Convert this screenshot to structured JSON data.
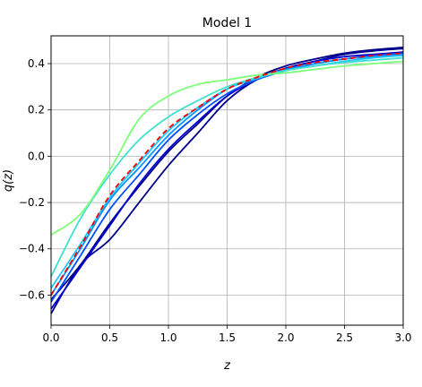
{
  "chart_data": {
    "type": "line",
    "title": "Model 1",
    "xlabel": "z",
    "ylabel": "q(z)",
    "xlim": [
      0,
      3
    ],
    "ylim": [
      -0.73,
      0.52
    ],
    "xticks": [
      0.0,
      0.5,
      1.0,
      1.5,
      2.0,
      2.5,
      3.0
    ],
    "xtick_labels": [
      "0.0",
      "0.5",
      "1.0",
      "1.5",
      "2.0",
      "2.5",
      "3.0"
    ],
    "yticks": [
      -0.6,
      -0.4,
      -0.2,
      0.0,
      0.2,
      0.4
    ],
    "ytick_labels": [
      "−0.6",
      "−0.4",
      "−0.2",
      "0.0",
      "0.2",
      "0.4"
    ],
    "grid": true,
    "x": [
      0.0,
      0.25,
      0.5,
      0.75,
      1.0,
      1.25,
      1.5,
      1.75,
      2.0,
      2.25,
      2.5,
      2.75,
      3.0
    ],
    "series": [
      {
        "color": "#00008b",
        "style": "solid",
        "values": [
          -0.68,
          -0.47,
          -0.36,
          -0.2,
          -0.04,
          0.1,
          0.24,
          0.33,
          0.38,
          0.41,
          0.44,
          0.455,
          0.465
        ]
      },
      {
        "color": "#00008b",
        "style": "solid",
        "values": [
          -0.62,
          -0.47,
          -0.29,
          -0.13,
          0.02,
          0.14,
          0.26,
          0.34,
          0.39,
          0.42,
          0.445,
          0.46,
          0.47
        ]
      },
      {
        "color": "#0000cd",
        "style": "solid",
        "values": [
          -0.66,
          -0.48,
          -0.3,
          -0.12,
          0.03,
          0.15,
          0.26,
          0.33,
          0.38,
          0.41,
          0.43,
          0.44,
          0.45
        ]
      },
      {
        "color": "#0050ff",
        "style": "solid",
        "values": [
          -0.63,
          -0.43,
          -0.23,
          -0.08,
          0.07,
          0.18,
          0.27,
          0.33,
          0.37,
          0.4,
          0.42,
          0.435,
          0.445
        ]
      },
      {
        "color": "#0096ff",
        "style": "solid",
        "values": [
          -0.6,
          -0.4,
          -0.19,
          -0.05,
          0.09,
          0.2,
          0.29,
          0.34,
          0.375,
          0.4,
          0.42,
          0.43,
          0.44
        ]
      },
      {
        "color": "#1ec8ff",
        "style": "solid",
        "values": [
          -0.57,
          -0.38,
          -0.18,
          -0.03,
          0.11,
          0.21,
          0.29,
          0.335,
          0.37,
          0.39,
          0.41,
          0.425,
          0.435
        ]
      },
      {
        "color": "#40e0d0",
        "style": "solid",
        "values": [
          -0.52,
          -0.27,
          -0.08,
          0.07,
          0.17,
          0.24,
          0.3,
          0.34,
          0.37,
          0.39,
          0.405,
          0.415,
          0.425
        ]
      },
      {
        "color": "#7dff7a",
        "style": "solid",
        "values": [
          -0.34,
          -0.25,
          -0.06,
          0.16,
          0.26,
          0.31,
          0.33,
          0.35,
          0.36,
          0.375,
          0.39,
          0.4,
          0.41
        ]
      },
      {
        "color": "#ff0000",
        "style": "dashed",
        "values": [
          -0.6,
          -0.39,
          -0.17,
          -0.02,
          0.12,
          0.21,
          0.29,
          0.34,
          0.38,
          0.405,
          0.42,
          0.435,
          0.445
        ]
      }
    ]
  }
}
